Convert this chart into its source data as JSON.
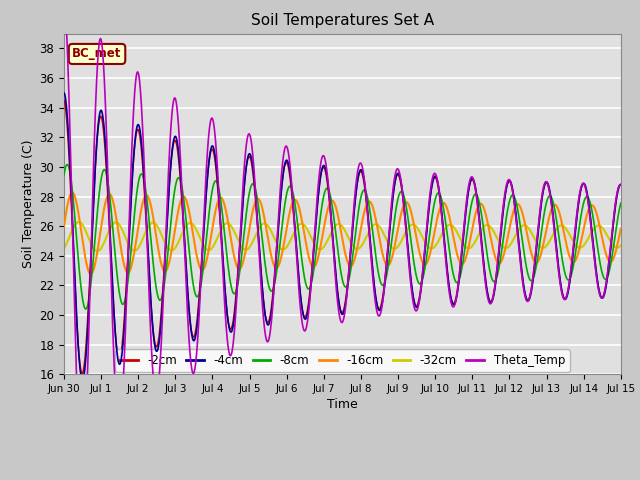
{
  "title": "Soil Temperatures Set A",
  "xlabel": "Time",
  "ylabel": "Soil Temperature (C)",
  "ylim": [
    16,
    39
  ],
  "xlim_days": [
    0,
    15
  ],
  "tick_labels": [
    "Jun 30",
    "Jul 1",
    "Jul 2",
    "Jul 3",
    "Jul 4",
    "Jul 5",
    "Jul 6",
    "Jul 7",
    "Jul 8",
    "Jul 9",
    "Jul 10",
    "Jul 11",
    "Jul 12",
    "Jul 13",
    "Jul 14",
    "Jul 15"
  ],
  "yticks": [
    16,
    18,
    20,
    22,
    24,
    26,
    28,
    30,
    32,
    34,
    36,
    38
  ],
  "series_colors": {
    "neg2cm": "#cc0000",
    "neg4cm": "#000099",
    "neg8cm": "#00aa00",
    "neg16cm": "#ff8800",
    "neg32cm": "#cccc00",
    "theta": "#bb00bb"
  },
  "legend_labels": [
    "-2cm",
    "-4cm",
    "-8cm",
    "-16cm",
    "-32cm",
    "Theta_Temp"
  ],
  "annotation_text": "BC_met",
  "background_color": "#e0e0e0",
  "linewidth": 1.2,
  "n_points": 3000
}
